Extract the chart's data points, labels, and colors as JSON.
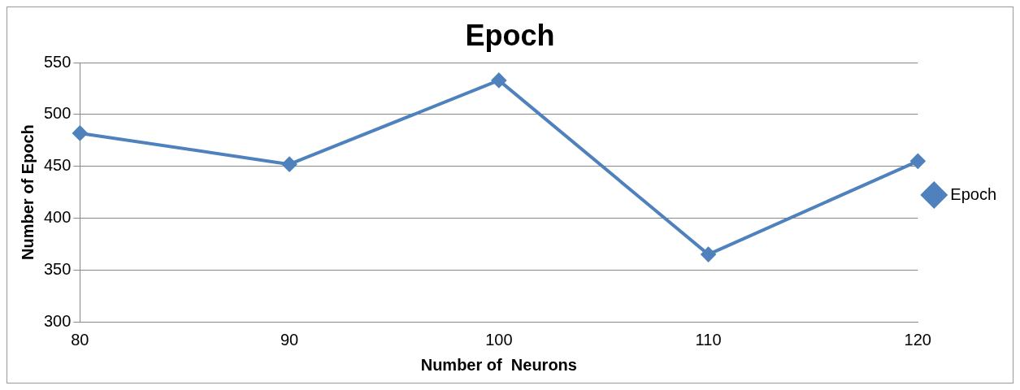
{
  "chart_data": {
    "type": "line",
    "title": "Epoch",
    "xlabel": "Number of  Neurons",
    "ylabel": "Number of Epoch",
    "categories": [
      "80",
      "90",
      "100",
      "110",
      "120"
    ],
    "series": [
      {
        "name": "Epoch",
        "color": "#4f81bd",
        "values": [
          482,
          452,
          533,
          365,
          455
        ]
      }
    ],
    "ylim": [
      300,
      550
    ],
    "yticks": [
      300,
      350,
      400,
      450,
      500,
      550
    ],
    "grid": "y",
    "legend": "right",
    "marker": "diamond",
    "line_style": "solid"
  }
}
